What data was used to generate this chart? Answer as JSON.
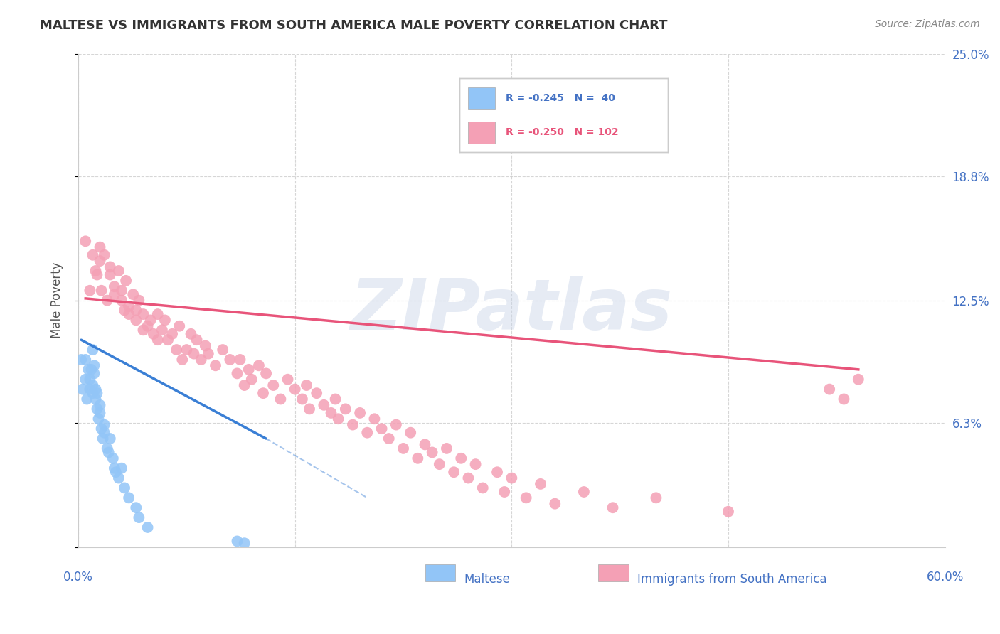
{
  "title": "MALTESE VS IMMIGRANTS FROM SOUTH AMERICA MALE POVERTY CORRELATION CHART",
  "source": "Source: ZipAtlas.com",
  "ylabel": "Male Poverty",
  "watermark": "ZIPatlas",
  "series1_name": "Maltese",
  "series2_name": "Immigrants from South America",
  "color1": "#92C5F7",
  "color2": "#F4A0B5",
  "line_color1": "#3A7FD5",
  "line_color2": "#E8547A",
  "xlim": [
    0.0,
    0.6
  ],
  "ylim": [
    0.0,
    0.25
  ],
  "yticks": [
    0.0,
    0.063,
    0.125,
    0.188,
    0.25
  ],
  "xticks": [
    0.0,
    0.15,
    0.3,
    0.45,
    0.6
  ],
  "background_color": "#FFFFFF",
  "grid_color": "#CCCCCC",
  "title_color": "#333333",
  "axis_label_color": "#555555",
  "blue_text_color": "#4472C4",
  "pink_text_color": "#E8547A",
  "maltese_x": [
    0.002,
    0.003,
    0.005,
    0.005,
    0.006,
    0.007,
    0.008,
    0.008,
    0.009,
    0.01,
    0.01,
    0.01,
    0.011,
    0.011,
    0.012,
    0.012,
    0.013,
    0.013,
    0.014,
    0.015,
    0.015,
    0.016,
    0.017,
    0.018,
    0.018,
    0.02,
    0.021,
    0.022,
    0.024,
    0.025,
    0.026,
    0.028,
    0.03,
    0.032,
    0.035,
    0.04,
    0.042,
    0.048,
    0.11,
    0.115
  ],
  "maltese_y": [
    0.095,
    0.08,
    0.085,
    0.095,
    0.075,
    0.09,
    0.08,
    0.085,
    0.09,
    0.1,
    0.078,
    0.082,
    0.088,
    0.092,
    0.075,
    0.08,
    0.07,
    0.078,
    0.065,
    0.068,
    0.072,
    0.06,
    0.055,
    0.062,
    0.058,
    0.05,
    0.048,
    0.055,
    0.045,
    0.04,
    0.038,
    0.035,
    0.04,
    0.03,
    0.025,
    0.02,
    0.015,
    0.01,
    0.003,
    0.002
  ],
  "sa_x": [
    0.005,
    0.008,
    0.01,
    0.012,
    0.013,
    0.015,
    0.015,
    0.016,
    0.018,
    0.02,
    0.022,
    0.022,
    0.025,
    0.025,
    0.028,
    0.03,
    0.03,
    0.032,
    0.033,
    0.035,
    0.035,
    0.038,
    0.04,
    0.04,
    0.042,
    0.045,
    0.045,
    0.048,
    0.05,
    0.052,
    0.055,
    0.055,
    0.058,
    0.06,
    0.062,
    0.065,
    0.068,
    0.07,
    0.072,
    0.075,
    0.078,
    0.08,
    0.082,
    0.085,
    0.088,
    0.09,
    0.095,
    0.1,
    0.105,
    0.11,
    0.112,
    0.115,
    0.118,
    0.12,
    0.125,
    0.128,
    0.13,
    0.135,
    0.14,
    0.145,
    0.15,
    0.155,
    0.158,
    0.16,
    0.165,
    0.17,
    0.175,
    0.178,
    0.18,
    0.185,
    0.19,
    0.195,
    0.2,
    0.205,
    0.21,
    0.215,
    0.22,
    0.225,
    0.23,
    0.235,
    0.24,
    0.245,
    0.25,
    0.255,
    0.26,
    0.265,
    0.27,
    0.275,
    0.28,
    0.29,
    0.295,
    0.3,
    0.31,
    0.32,
    0.33,
    0.35,
    0.37,
    0.4,
    0.45,
    0.52,
    0.53,
    0.54
  ],
  "sa_y": [
    0.155,
    0.13,
    0.148,
    0.14,
    0.138,
    0.145,
    0.152,
    0.13,
    0.148,
    0.125,
    0.138,
    0.142,
    0.128,
    0.132,
    0.14,
    0.125,
    0.13,
    0.12,
    0.135,
    0.118,
    0.122,
    0.128,
    0.115,
    0.12,
    0.125,
    0.11,
    0.118,
    0.112,
    0.115,
    0.108,
    0.105,
    0.118,
    0.11,
    0.115,
    0.105,
    0.108,
    0.1,
    0.112,
    0.095,
    0.1,
    0.108,
    0.098,
    0.105,
    0.095,
    0.102,
    0.098,
    0.092,
    0.1,
    0.095,
    0.088,
    0.095,
    0.082,
    0.09,
    0.085,
    0.092,
    0.078,
    0.088,
    0.082,
    0.075,
    0.085,
    0.08,
    0.075,
    0.082,
    0.07,
    0.078,
    0.072,
    0.068,
    0.075,
    0.065,
    0.07,
    0.062,
    0.068,
    0.058,
    0.065,
    0.06,
    0.055,
    0.062,
    0.05,
    0.058,
    0.045,
    0.052,
    0.048,
    0.042,
    0.05,
    0.038,
    0.045,
    0.035,
    0.042,
    0.03,
    0.038,
    0.028,
    0.035,
    0.025,
    0.032,
    0.022,
    0.028,
    0.02,
    0.025,
    0.018,
    0.08,
    0.075,
    0.085
  ],
  "maltese_line_x0": 0.002,
  "maltese_line_x1": 0.13,
  "maltese_line_x2": 0.2,
  "maltese_line_y0": 0.105,
  "maltese_line_y1": 0.055,
  "maltese_line_y2": 0.025,
  "sa_line_x0": 0.005,
  "sa_line_x1": 0.54,
  "sa_line_y0": 0.126,
  "sa_line_y1": 0.09
}
